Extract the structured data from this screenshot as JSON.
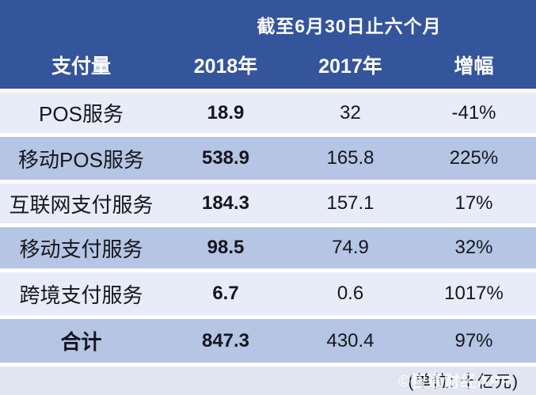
{
  "table": {
    "title": "截至6月30日止六个月",
    "columns": [
      "支付量",
      "2018年",
      "2017年",
      "增幅"
    ],
    "rows": [
      {
        "label": "POS服务",
        "y2018": "18.9",
        "y2017": "32",
        "growth": "-41%"
      },
      {
        "label": "移动POS服务",
        "y2018": "538.9",
        "y2017": "165.8",
        "growth": "225%"
      },
      {
        "label": "互联网支付服务",
        "y2018": "184.3",
        "y2017": "157.1",
        "growth": "17%"
      },
      {
        "label": "移动支付服务",
        "y2018": "98.5",
        "y2017": "74.9",
        "growth": "32%"
      },
      {
        "label": "跨境支付服务",
        "y2018": "6.7",
        "y2017": "0.6",
        "growth": "1017%"
      }
    ],
    "total": {
      "label": "合计",
      "y2018": "847.3",
      "y2017": "430.4",
      "growth": "97%"
    },
    "footer": {
      "unit_note": "(单位: 十亿元)",
      "watermark": "©智通财经APP"
    }
  },
  "colors": {
    "header_bg": "#34549B",
    "row_light": "#E8ECF8",
    "row_blue": "#B5C5E3",
    "footer_bg": "#E0E5F1",
    "text_dark": "#16161E",
    "text_white": "#FFFFFF"
  },
  "chart_data": {
    "type": "table",
    "title": "截至6月30日止六个月",
    "unit_note": "(单位: 十亿元)",
    "columns": [
      "支付量",
      "2018年",
      "2017年",
      "增幅"
    ],
    "rows": [
      [
        "POS服务",
        18.9,
        32,
        "-41%"
      ],
      [
        "移动POS服务",
        538.9,
        165.8,
        "225%"
      ],
      [
        "互联网支付服务",
        184.3,
        157.1,
        "17%"
      ],
      [
        "移动支付服务",
        98.5,
        74.9,
        "32%"
      ],
      [
        "跨境支付服务",
        6.7,
        0.6,
        "1017%"
      ],
      [
        "合计",
        847.3,
        430.4,
        "97%"
      ]
    ]
  }
}
